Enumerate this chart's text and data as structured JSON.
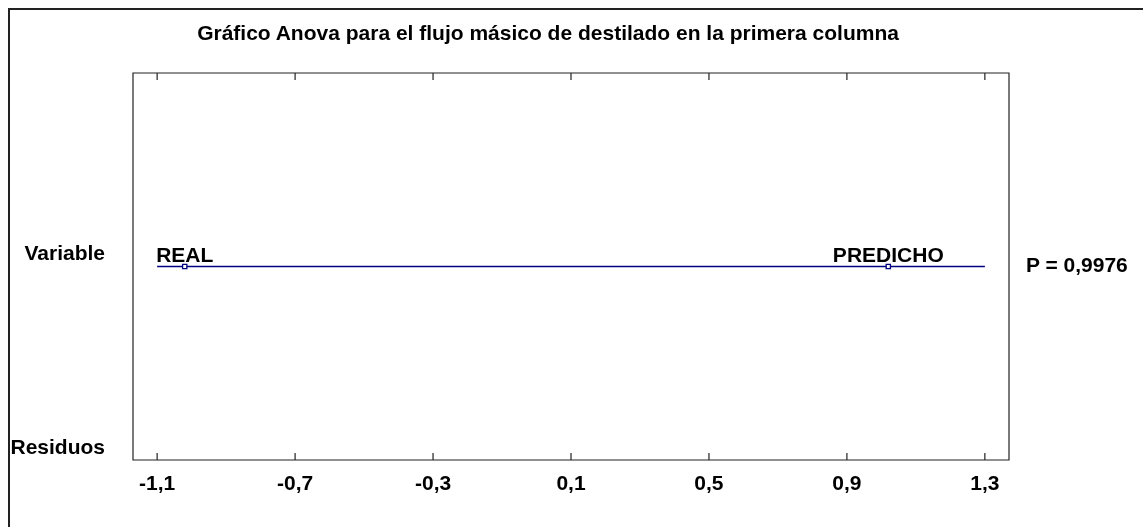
{
  "chart_data": {
    "type": "scatter",
    "title": "Gráfico Anova para el flujo másico de destilado en la primera columna",
    "orientation": "horizontal",
    "categories": [
      "Variable",
      "Residuos"
    ],
    "series": [
      {
        "name": "REAL",
        "color": "#000080",
        "values": [
          -1.02,
          null
        ]
      },
      {
        "name": "PREDICHO",
        "color": "#000080",
        "values": [
          1.02,
          null
        ]
      }
    ],
    "marker": "square",
    "xlim": [
      -1.17,
      1.37
    ],
    "xticks": [
      {
        "value": -1.1,
        "label": "-1,1"
      },
      {
        "value": -0.7,
        "label": "-0,7"
      },
      {
        "value": -0.3,
        "label": "-0,3"
      },
      {
        "value": 0.1,
        "label": "0,1"
      },
      {
        "value": 0.5,
        "label": "0,5"
      },
      {
        "value": 0.9,
        "label": "0,9"
      },
      {
        "value": 1.3,
        "label": "1,3"
      }
    ],
    "ref_lines": [
      {
        "axis": "y",
        "value": "Variable",
        "color": "#000080"
      }
    ],
    "annotations": [
      "P = 0,9976"
    ]
  }
}
